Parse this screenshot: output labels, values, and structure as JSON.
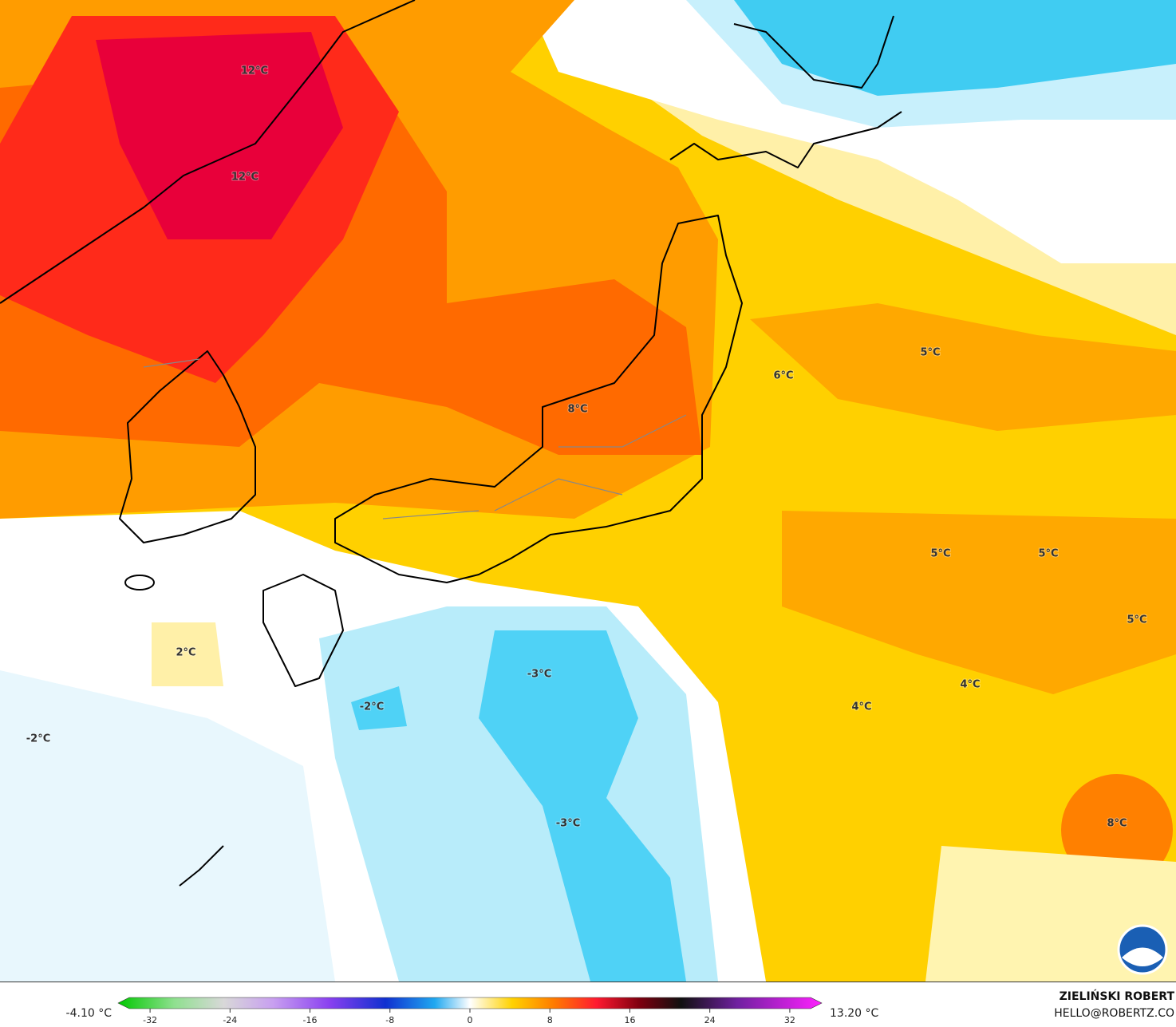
{
  "map": {
    "labels": [
      "12°C",
      "12°C",
      "8°C",
      "6°C",
      "5°C",
      "5°C",
      "5°C",
      "5°C",
      "4°C",
      "4°C",
      "2°C",
      "-2°C",
      "-2°C",
      "-3°C",
      "-3°C",
      "8°C"
    ]
  },
  "colorbar": {
    "min_label": "-4.10 °C",
    "max_label": "13.20 °C",
    "ticks": [
      -32,
      -24,
      -16,
      -8,
      0,
      8,
      16,
      24,
      32
    ],
    "lim": [
      -35.2,
      35.2
    ]
  },
  "credit": {
    "name": "ZIELIŃSKI ROBERT",
    "email": "HELLO@ROBERTZ.CO"
  }
}
